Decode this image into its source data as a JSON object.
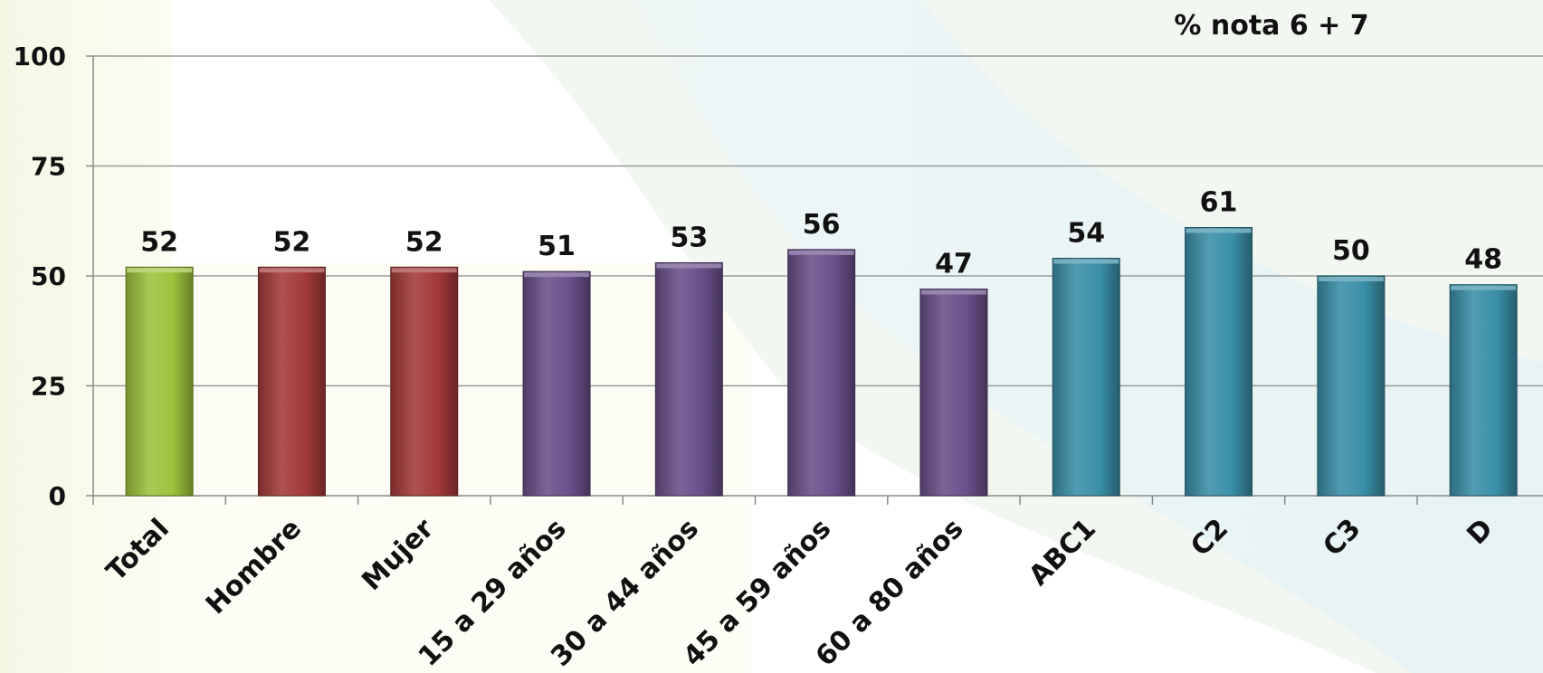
{
  "chart_data": {
    "type": "bar",
    "title": "% nota 6 + 7",
    "categories": [
      "Total",
      "Hombre",
      "Mujer",
      "15 a 29 años",
      "30 a 44 años",
      "45 a 59 años",
      "60 a 80 años",
      "ABC1",
      "C2",
      "C3",
      "D"
    ],
    "values": [
      52,
      52,
      52,
      51,
      53,
      56,
      47,
      54,
      61,
      50,
      48
    ],
    "value_labels": [
      "52",
      "52",
      "52",
      "51",
      "53",
      "56",
      "47",
      "54",
      "61",
      "50",
      "48"
    ],
    "groups": [
      "total",
      "sex",
      "sex",
      "age",
      "age",
      "age",
      "age",
      "ses",
      "ses",
      "ses",
      "ses"
    ],
    "group_colors": {
      "total": "#9cc33b",
      "sex": "#a33a38",
      "age": "#6a4f8a",
      "ses": "#3a8fa8"
    },
    "ylim": [
      0,
      100
    ],
    "yticks": [
      0,
      25,
      50,
      75,
      100
    ],
    "ytick_labels": [
      "0",
      "25",
      "50",
      "75",
      "100"
    ],
    "xlabel": "",
    "ylabel": "",
    "grid": true,
    "legend": "none"
  }
}
